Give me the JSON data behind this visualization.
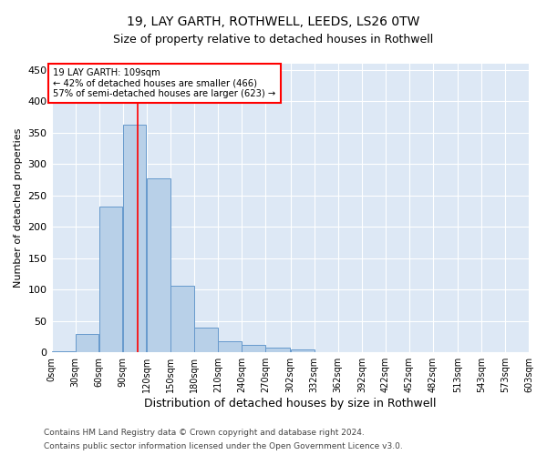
{
  "title_line1": "19, LAY GARTH, ROTHWELL, LEEDS, LS26 0TW",
  "title_line2": "Size of property relative to detached houses in Rothwell",
  "xlabel": "Distribution of detached houses by size in Rothwell",
  "ylabel": "Number of detached properties",
  "bar_color": "#b8d0e8",
  "bar_edge_color": "#6699cc",
  "background_color": "#dde8f5",
  "annotation_text": "19 LAY GARTH: 109sqm\n← 42% of detached houses are smaller (466)\n57% of semi-detached houses are larger (623) →",
  "vline_x": 109,
  "bin_edges": [
    0,
    30,
    60,
    90,
    120,
    150,
    180,
    210,
    240,
    270,
    302,
    332,
    362,
    392,
    422,
    452,
    482,
    513,
    543,
    573,
    603
  ],
  "bin_counts": [
    2,
    30,
    233,
    363,
    278,
    106,
    40,
    18,
    12,
    7,
    5,
    1,
    0,
    0,
    0,
    0,
    0,
    0,
    1,
    0
  ],
  "ylim": [
    0,
    460
  ],
  "yticks": [
    0,
    50,
    100,
    150,
    200,
    250,
    300,
    350,
    400,
    450
  ],
  "footnote_line1": "Contains HM Land Registry data © Crown copyright and database right 2024.",
  "footnote_line2": "Contains public sector information licensed under the Open Government Licence v3.0.",
  "annotation_box_color": "white",
  "annotation_box_edge": "red",
  "vline_color": "red",
  "title_fontsize": 10,
  "subtitle_fontsize": 9,
  "ylabel_fontsize": 8,
  "xlabel_fontsize": 9,
  "tick_fontsize": 7,
  "footnote_fontsize": 6.5
}
